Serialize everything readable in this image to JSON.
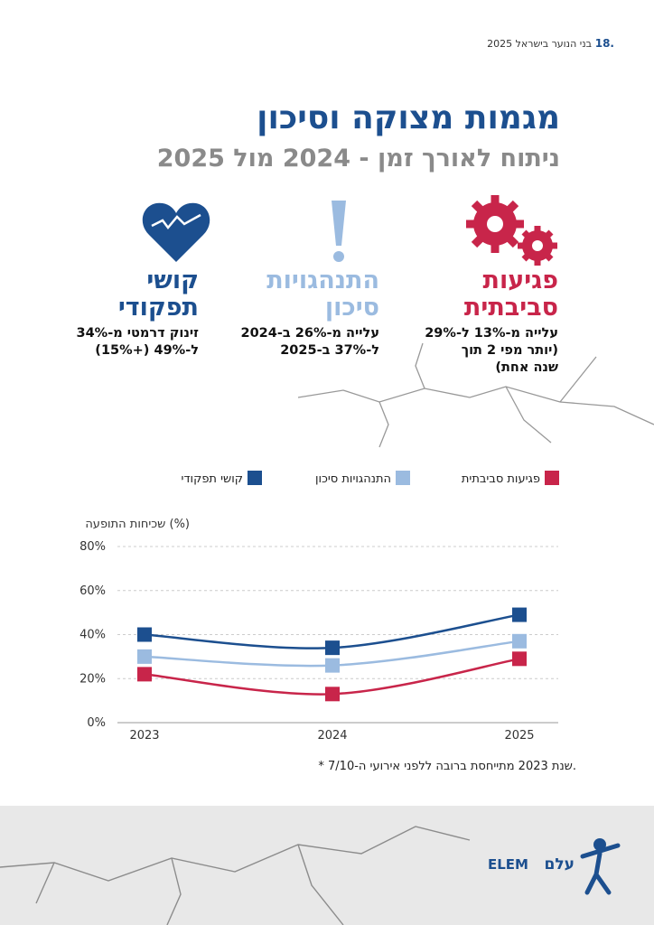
{
  "header": {
    "page_number": "18.",
    "running_title": "בני הנוער בישראל 2025"
  },
  "title": "מגמות מצוקה וסיכון",
  "subtitle": "ניתוח לאורך זמן - 2024 מול 2025",
  "cards": [
    {
      "title_lines": [
        "פגיעות",
        "סביבתית"
      ],
      "description_lines": [
        "עלייה מ-13% ל-29%",
        "(יותר מפי 2 תוך",
        "שנה אחת)"
      ]
    },
    {
      "title_lines": [
        "התנהגויות",
        "סיכון"
      ],
      "description_lines": [
        "עלייה מ-26% ב-2024",
        "ל-37% ב-2025"
      ]
    },
    {
      "title_lines": [
        "קושי",
        "תפקודי"
      ],
      "description_lines": [
        "זינוק דרמטי מ-34%",
        "ל-49% (+15%)"
      ]
    }
  ],
  "chart_data": {
    "type": "line",
    "y_label": "שכיחות התופעה (%)",
    "categories": [
      "2023",
      "2024",
      "2025"
    ],
    "series": [
      {
        "name": "פגיעות סביבתית",
        "color": "#c8254a",
        "values": [
          22,
          13,
          29
        ]
      },
      {
        "name": "התנהגויות סיכון",
        "color": "#9bbbe0",
        "values": [
          30,
          26,
          37
        ]
      },
      {
        "name": "קושי תפקודי",
        "color": "#1c4f8f",
        "values": [
          40,
          34,
          49
        ]
      }
    ],
    "ylim": [
      0,
      80
    ],
    "yticks": [
      {
        "value": 0,
        "label": "0%"
      },
      {
        "value": 20,
        "label": "20%"
      },
      {
        "value": 40,
        "label": "40%"
      },
      {
        "value": 60,
        "label": "60%"
      },
      {
        "value": 80,
        "label": "80%"
      }
    ],
    "grid": true
  },
  "footnote": "* שנת 2023 מתייחסת ברובה ללפני אירועי ה-7/10.",
  "logo": {
    "latin": "ELEM",
    "hebrew": "עלם"
  }
}
